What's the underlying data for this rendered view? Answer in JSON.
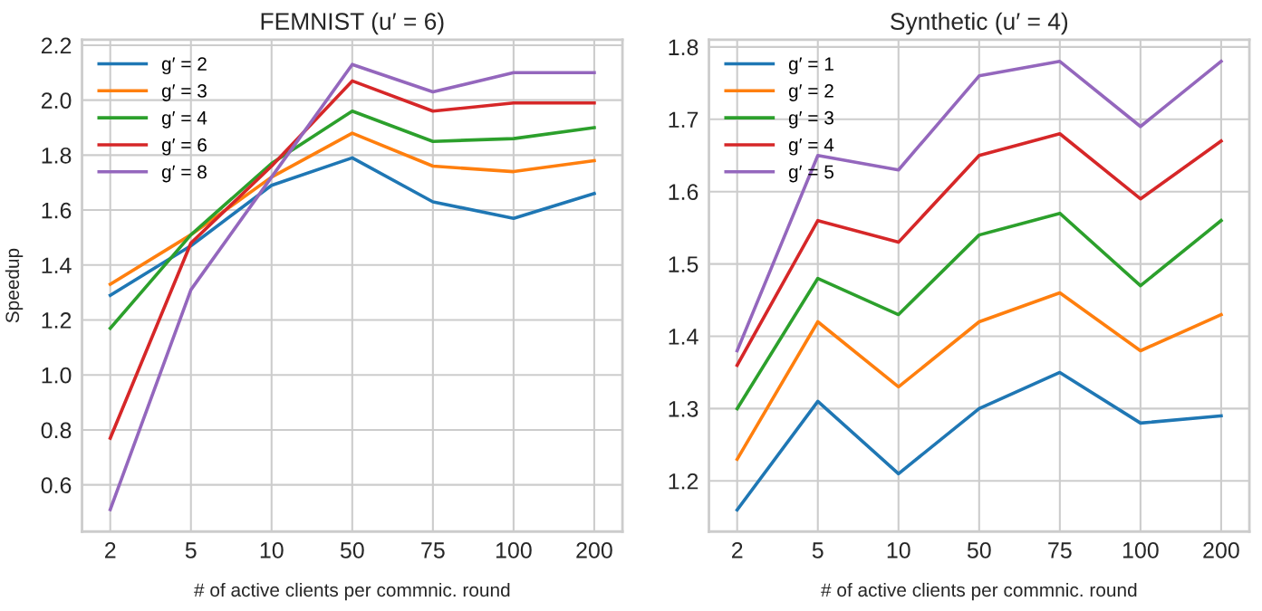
{
  "chart_data": [
    {
      "type": "line",
      "title": "FEMNIST (u′ = 6)",
      "xlabel": "# of active clients per commnic. round",
      "ylabel": "Speedup",
      "categories": [
        "2",
        "5",
        "10",
        "50",
        "75",
        "100",
        "200"
      ],
      "ylim": [
        0.43,
        2.22
      ],
      "yticks": [
        0.6,
        0.8,
        {
          "value": 1,
          "label": "1.0"
        },
        1.2,
        1.4,
        1.6,
        1.8,
        {
          "value": 2,
          "label": "2.0"
        },
        2.2
      ],
      "grid": true,
      "legend": "top left",
      "marker": "none",
      "line_style": "solid",
      "series": [
        {
          "name": "g′ = 2",
          "color": "#1f77b4",
          "values": [
            1.29,
            1.47,
            1.69,
            1.79,
            1.63,
            1.57,
            1.66
          ]
        },
        {
          "name": "g′ = 3",
          "color": "#ff7f0e",
          "values": [
            1.33,
            1.51,
            1.72,
            1.88,
            1.76,
            1.74,
            1.78
          ]
        },
        {
          "name": "g′ = 4",
          "color": "#2ca02c",
          "values": [
            1.17,
            1.51,
            1.77,
            1.96,
            1.85,
            1.86,
            1.9
          ]
        },
        {
          "name": "g′ = 6",
          "color": "#d62728",
          "values": [
            0.77,
            1.48,
            1.76,
            2.07,
            1.96,
            1.99,
            1.99
          ]
        },
        {
          "name": "g′ = 8",
          "color": "#9467bd",
          "values": [
            0.51,
            1.31,
            1.72,
            2.13,
            2.03,
            2.1,
            2.1
          ]
        }
      ]
    },
    {
      "type": "line",
      "title": "Synthetic (u′ = 4)",
      "xlabel": "# of active clients per commnic. round",
      "categories": [
        "2",
        "5",
        "10",
        "50",
        "75",
        "100",
        "200"
      ],
      "ylim": [
        1.13,
        1.81
      ],
      "yticks": [
        1.2,
        1.3,
        1.4,
        1.5,
        1.6,
        1.7,
        1.8
      ],
      "grid": true,
      "legend": "top left",
      "marker": "none",
      "line_style": "solid",
      "series": [
        {
          "name": "g′ = 1",
          "color": "#1f77b4",
          "values": [
            1.16,
            1.31,
            1.21,
            1.3,
            1.35,
            1.28,
            1.29
          ]
        },
        {
          "name": "g′ = 2",
          "color": "#ff7f0e",
          "values": [
            1.23,
            1.42,
            1.33,
            1.42,
            1.46,
            1.38,
            1.43
          ]
        },
        {
          "name": "g′ = 3",
          "color": "#2ca02c",
          "values": [
            1.3,
            1.48,
            1.43,
            1.54,
            1.57,
            1.47,
            1.56
          ]
        },
        {
          "name": "g′ = 4",
          "color": "#d62728",
          "values": [
            1.36,
            1.56,
            1.53,
            1.65,
            1.68,
            1.59,
            1.67
          ]
        },
        {
          "name": "g′ = 5",
          "color": "#9467bd",
          "values": [
            1.38,
            1.65,
            1.63,
            1.76,
            1.78,
            1.69,
            1.78
          ]
        }
      ]
    }
  ]
}
